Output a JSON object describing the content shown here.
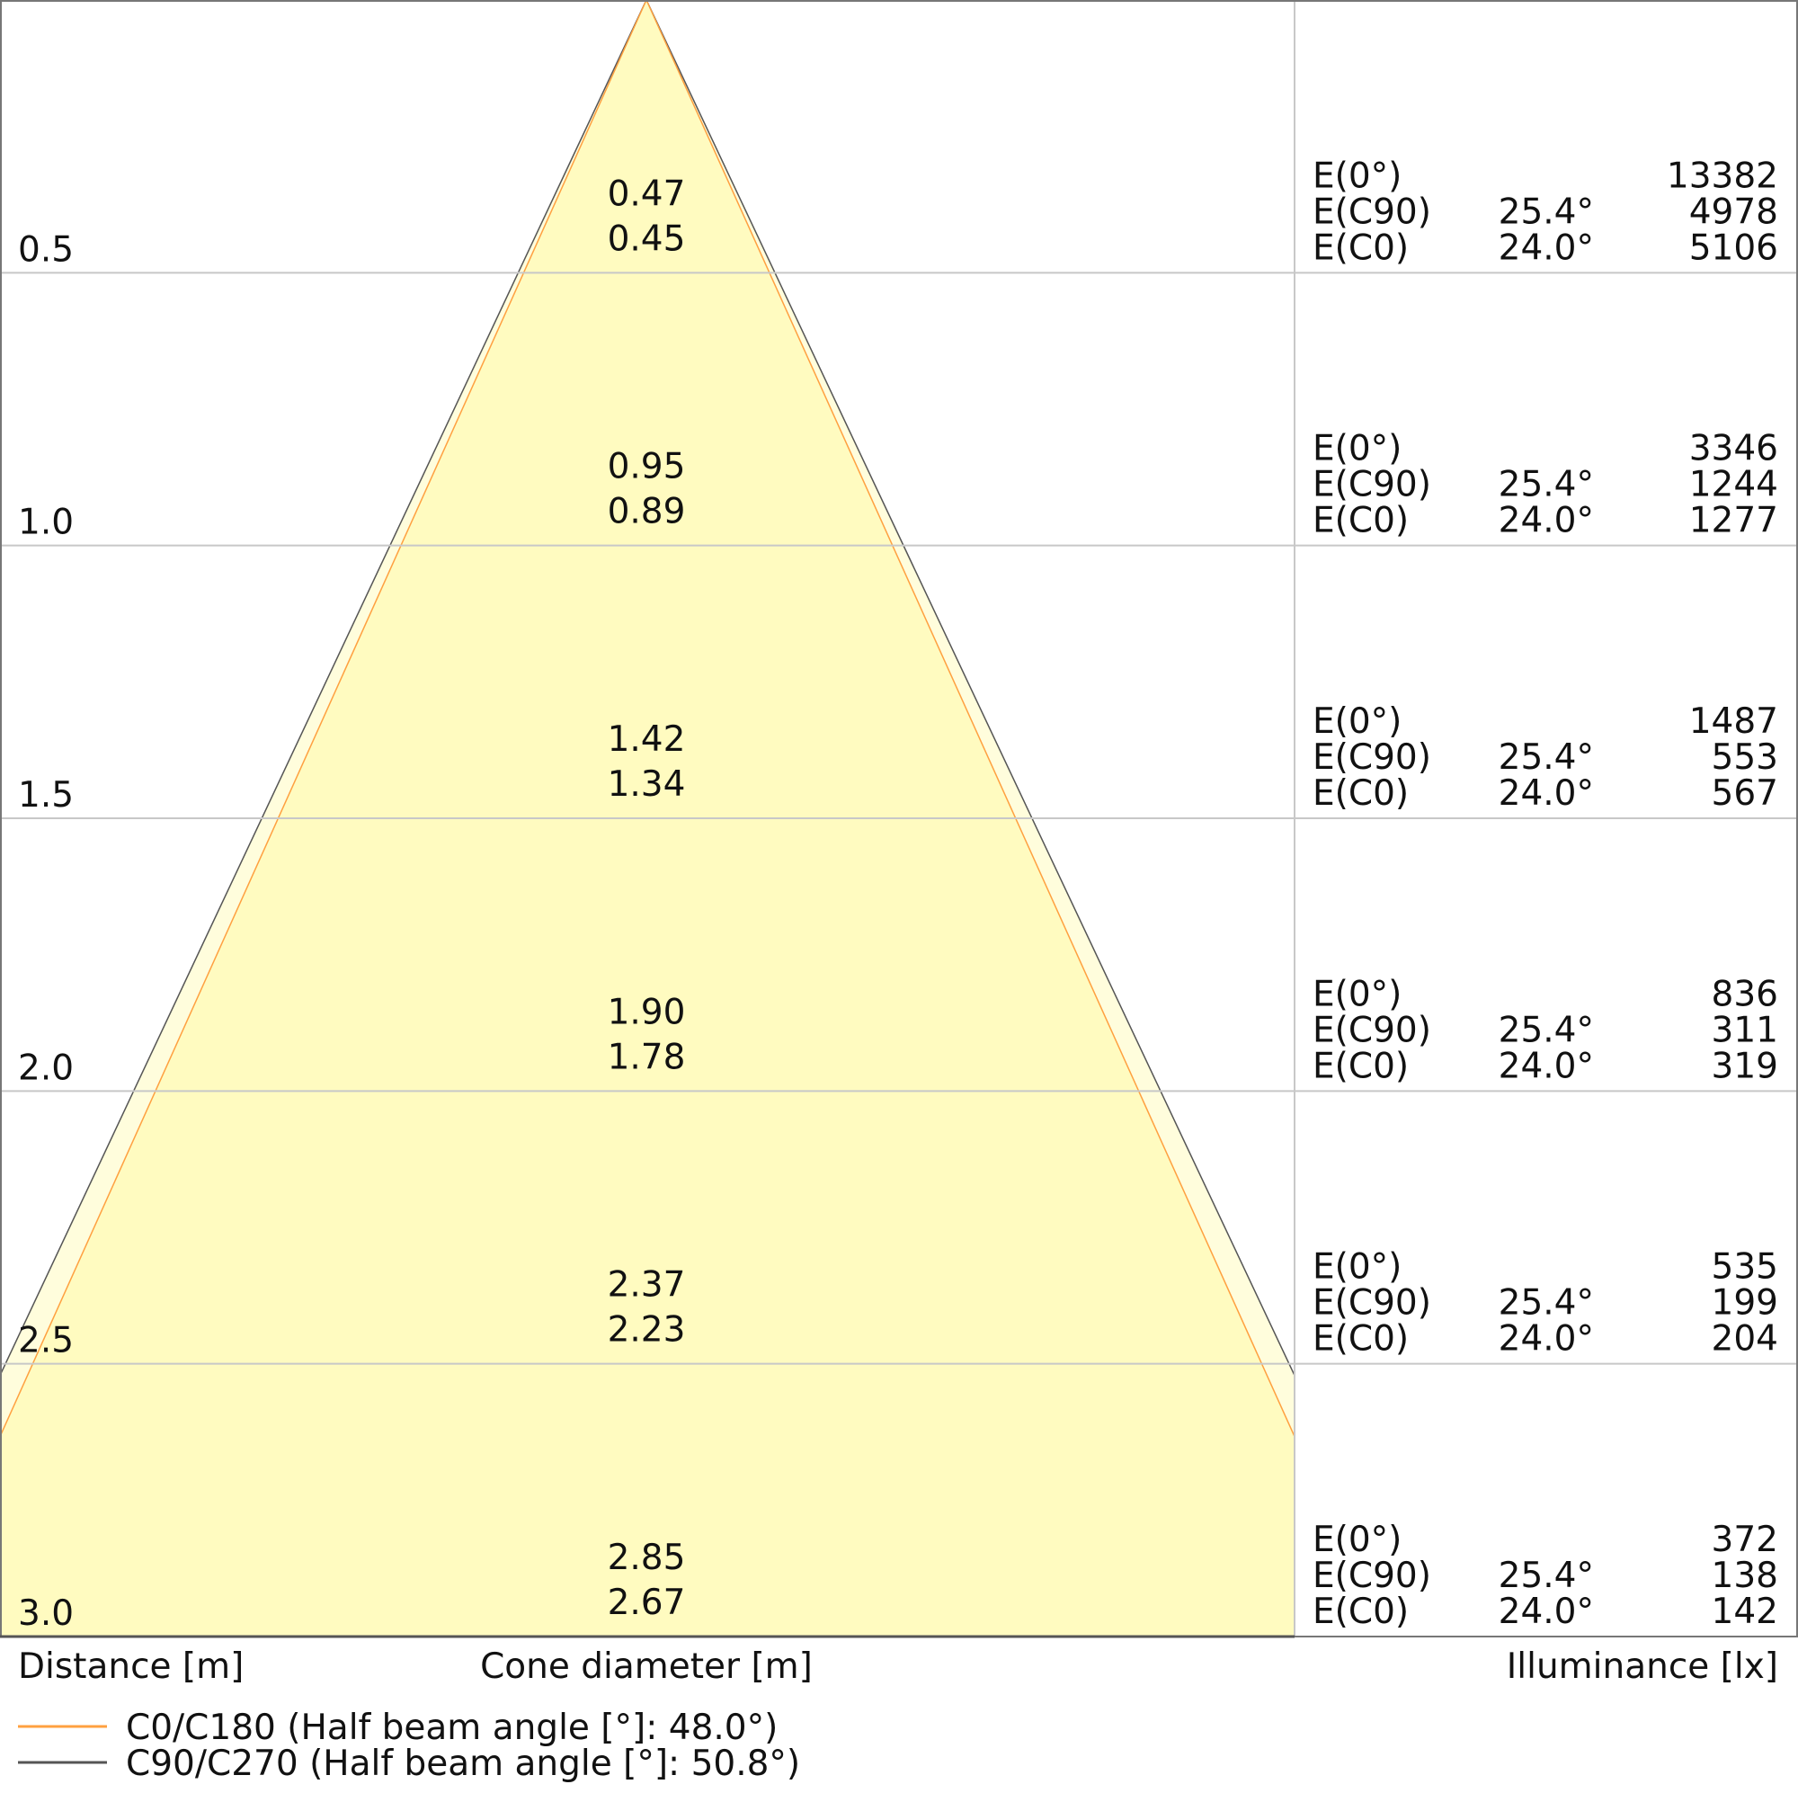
{
  "chart_data": {
    "type": "cone-diagram",
    "distance_label": "Distance [m]",
    "diameter_label": "Cone diameter [m]",
    "illuminance_label": "Illuminance [lx]",
    "distance_range": [
      0,
      3.0
    ],
    "colors": {
      "c0": "#FFA040",
      "c90": "#555555",
      "fill_c0": "#FFFBC0",
      "fill_c90": "#FFFDDC",
      "grid": "#C8C8C8"
    },
    "legend": [
      {
        "name": "C0/C180 (Half beam angle [°]: 48.0°)",
        "color": "#FFA040"
      },
      {
        "name": "C90/C270 (Half beam angle [°]: 50.8°)",
        "color": "#555555"
      }
    ],
    "rows": [
      {
        "distance": "0.5",
        "d": 0.5,
        "dia_c90": "0.47",
        "dia_c0": "0.45",
        "e0_label": "E(0°)",
        "e0": "13382",
        "ec90_label": "E(C90)",
        "ec90_angle": "25.4°",
        "ec90": "4978",
        "ec0_label": "E(C0)",
        "ec0_angle": "24.0°",
        "ec0": "5106"
      },
      {
        "distance": "1.0",
        "d": 1.0,
        "dia_c90": "0.95",
        "dia_c0": "0.89",
        "e0_label": "E(0°)",
        "e0": "3346",
        "ec90_label": "E(C90)",
        "ec90_angle": "25.4°",
        "ec90": "1244",
        "ec0_label": "E(C0)",
        "ec0_angle": "24.0°",
        "ec0": "1277"
      },
      {
        "distance": "1.5",
        "d": 1.5,
        "dia_c90": "1.42",
        "dia_c0": "1.34",
        "e0_label": "E(0°)",
        "e0": "1487",
        "ec90_label": "E(C90)",
        "ec90_angle": "25.4°",
        "ec90": "553",
        "ec0_label": "E(C0)",
        "ec0_angle": "24.0°",
        "ec0": "567"
      },
      {
        "distance": "2.0",
        "d": 2.0,
        "dia_c90": "1.90",
        "dia_c0": "1.78",
        "e0_label": "E(0°)",
        "e0": "836",
        "ec90_label": "E(C90)",
        "ec90_angle": "25.4°",
        "ec90": "311",
        "ec0_label": "E(C0)",
        "ec0_angle": "24.0°",
        "ec0": "319"
      },
      {
        "distance": "2.5",
        "d": 2.5,
        "dia_c90": "2.37",
        "dia_c0": "2.23",
        "e0_label": "E(0°)",
        "e0": "535",
        "ec90_label": "E(C90)",
        "ec90_angle": "25.4°",
        "ec90": "199",
        "ec0_label": "E(C0)",
        "ec0_angle": "24.0°",
        "ec0": "204"
      },
      {
        "distance": "3.0",
        "d": 3.0,
        "dia_c90": "2.85",
        "dia_c0": "2.67",
        "e0_label": "E(0°)",
        "e0": "372",
        "ec90_label": "E(C90)",
        "ec90_angle": "25.4°",
        "ec90": "138",
        "ec0_label": "E(C0)",
        "ec0_angle": "24.0°",
        "ec0": "142"
      }
    ]
  }
}
